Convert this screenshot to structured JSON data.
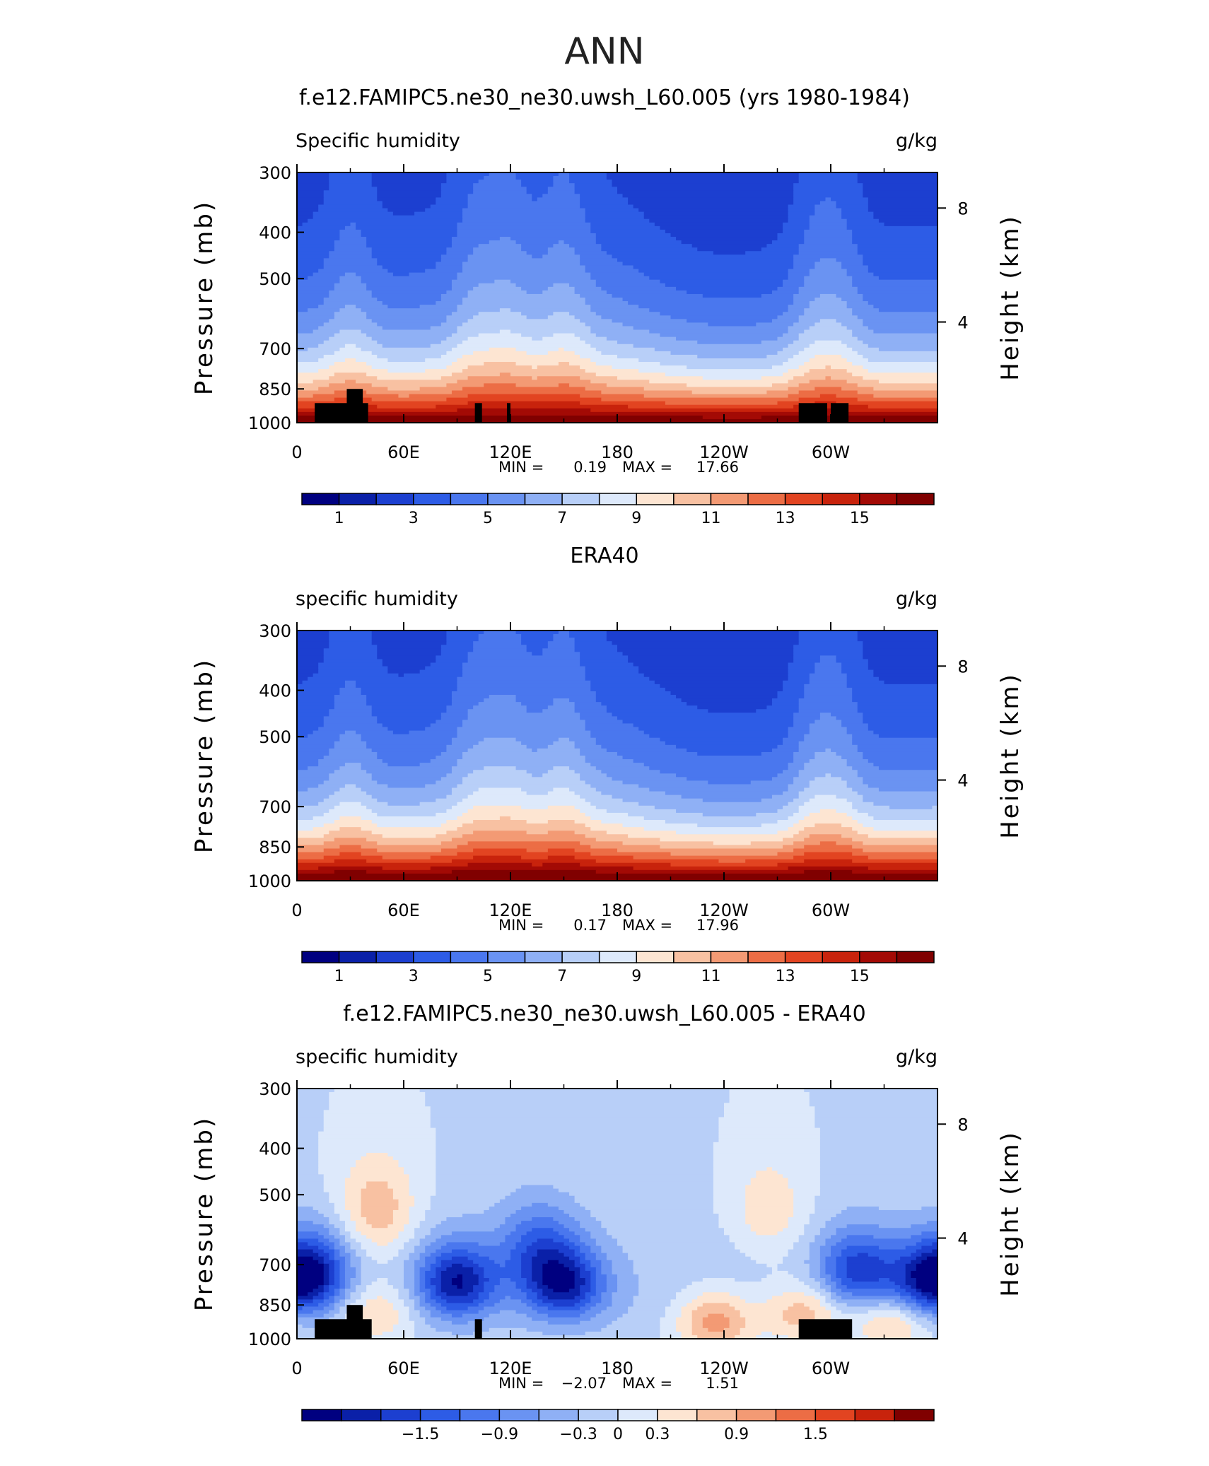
{
  "figure": {
    "title": "ANN"
  },
  "chart_data": [
    {
      "type": "heatmap",
      "title": "f.e12.FAMIPC5.ne30_ne30.uwsh_L60.005 (yrs 1980-1984)",
      "left_label": "Specific humidity",
      "right_label": "g/kg",
      "ylabel": "Pressure (mb)",
      "ylabel_right": "Height (km)",
      "y_ticks": [
        "300",
        "400",
        "500",
        "700",
        "850",
        "1000"
      ],
      "y_right_ticks": [
        "8",
        "4"
      ],
      "x_ticks": [
        "0",
        "60E",
        "120E",
        "180",
        "120W",
        "60W"
      ],
      "x_range": [
        0,
        360
      ],
      "y_range": [
        1000,
        300
      ],
      "stats": {
        "min_label": "MIN =",
        "min": "0.19",
        "max_label": "MAX =",
        "max": "17.66"
      },
      "colorbar": {
        "levels": [
          0,
          1,
          2,
          3,
          4,
          5,
          6,
          7,
          8,
          9,
          10,
          11,
          12,
          13,
          14,
          15,
          16
        ],
        "labels": [
          "1",
          "3",
          "5",
          "7",
          "9",
          "11",
          "13",
          "15"
        ],
        "colors": [
          "#000080",
          "#0a20a8",
          "#1c3fd0",
          "#2d5ce6",
          "#4a77ee",
          "#6a93f2",
          "#8fb0f5",
          "#b8cff8",
          "#dde9fb",
          "#fde5d2",
          "#f8c1a2",
          "#f39a74",
          "#ec6d45",
          "#e24421",
          "#c8230c",
          "#a30a05",
          "#800000"
        ]
      },
      "field": {
        "surface_q": 16.5,
        "scale_height_mb": 290,
        "moist_regions_lon": [
          30,
          100,
          120,
          150,
          290,
          305
        ]
      },
      "topography": [
        "box 10-40 to 910mb",
        "box 28-37 to 850mb",
        "box 100-104 to 910mb",
        "box 118-120 to 910mb",
        "box 282-298 to 910mb",
        "box 300-310 to 910mb"
      ]
    },
    {
      "type": "heatmap",
      "title": "ERA40",
      "left_label": "specific humidity",
      "right_label": "g/kg",
      "ylabel": "Pressure (mb)",
      "ylabel_right": "Height (km)",
      "y_ticks": [
        "300",
        "400",
        "500",
        "700",
        "850",
        "1000"
      ],
      "y_right_ticks": [
        "8",
        "4"
      ],
      "x_ticks": [
        "0",
        "60E",
        "120E",
        "180",
        "120W",
        "60W"
      ],
      "x_range": [
        0,
        360
      ],
      "y_range": [
        1000,
        300
      ],
      "stats": {
        "min_label": "MIN =",
        "min": "0.17",
        "max_label": "MAX =",
        "max": "17.96"
      },
      "colorbar": {
        "levels": [
          0,
          1,
          2,
          3,
          4,
          5,
          6,
          7,
          8,
          9,
          10,
          11,
          12,
          13,
          14,
          15,
          16
        ],
        "labels": [
          "1",
          "3",
          "5",
          "7",
          "9",
          "11",
          "13",
          "15"
        ],
        "colors": [
          "#000080",
          "#0a20a8",
          "#1c3fd0",
          "#2d5ce6",
          "#4a77ee",
          "#6a93f2",
          "#8fb0f5",
          "#b8cff8",
          "#dde9fb",
          "#fde5d2",
          "#f8c1a2",
          "#f39a74",
          "#ec6d45",
          "#e24421",
          "#c8230c",
          "#a30a05",
          "#800000"
        ]
      },
      "field": {
        "surface_q": 17.0,
        "scale_height_mb": 285,
        "moist_regions_lon": [
          30,
          100,
          120,
          150,
          290,
          305
        ]
      },
      "topography": []
    },
    {
      "type": "heatmap",
      "title": "f.e12.FAMIPC5.ne30_ne30.uwsh_L60.005 - ERA40",
      "left_label": "specific humidity",
      "right_label": "g/kg",
      "ylabel": "Pressure (mb)",
      "ylabel_right": "Height (km)",
      "y_ticks": [
        "300",
        "400",
        "500",
        "700",
        "850",
        "1000"
      ],
      "y_right_ticks": [
        "8",
        "4"
      ],
      "x_ticks": [
        "0",
        "60E",
        "120E",
        "180",
        "120W",
        "60W"
      ],
      "x_range": [
        0,
        360
      ],
      "y_range": [
        1000,
        300
      ],
      "stats": {
        "min_label": "MIN =",
        "min": "−2.07",
        "max_label": "MAX =",
        "max": "1.51"
      },
      "colorbar": {
        "levels": [
          -2.1,
          -1.8,
          -1.5,
          -1.2,
          -0.9,
          -0.6,
          -0.3,
          0,
          0.3,
          0.6,
          0.9,
          1.2,
          1.5,
          1.8,
          2.1
        ],
        "labels": [
          "−1.5",
          "−0.9",
          "−0.3",
          "0",
          "0.3",
          "0.9",
          "1.5"
        ],
        "label_levels": [
          -1.5,
          -0.9,
          -0.3,
          0,
          0.3,
          0.9,
          1.5
        ],
        "colors": [
          "#000080",
          "#0a20a8",
          "#1c3fd0",
          "#2d5ce6",
          "#4a77ee",
          "#6a93f2",
          "#8fb0f5",
          "#b8cff8",
          "#dde9fb",
          "#fde5d2",
          "#f8c1a2",
          "#f39a74",
          "#ec6d45",
          "#e24421",
          "#c8230c",
          "#800000"
        ]
      },
      "anomalies": [
        {
          "lon": 10,
          "p": 720,
          "amp": -1.3
        },
        {
          "lon": 90,
          "p": 760,
          "amp": -1.9
        },
        {
          "lon": 150,
          "p": 770,
          "amp": -1.8
        },
        {
          "lon": 135,
          "p": 640,
          "amp": -1.0
        },
        {
          "lon": 45,
          "p": 540,
          "amp": 0.9
        },
        {
          "lon": 45,
          "p": 880,
          "amp": 0.8
        },
        {
          "lon": 235,
          "p": 920,
          "amp": 1.2
        },
        {
          "lon": 265,
          "p": 540,
          "amp": 0.6
        },
        {
          "lon": 315,
          "p": 720,
          "amp": -1.5
        },
        {
          "lon": 355,
          "p": 760,
          "amp": -1.6
        },
        {
          "lon": 335,
          "p": 920,
          "amp": 0.9
        },
        {
          "lon": 285,
          "p": 880,
          "amp": 1.0
        }
      ],
      "topography": [
        "box 10-42 to 910mb",
        "box 28-37 to 850mb",
        "box 100-104 to 910mb",
        "box 282-312 to 910mb"
      ]
    }
  ]
}
